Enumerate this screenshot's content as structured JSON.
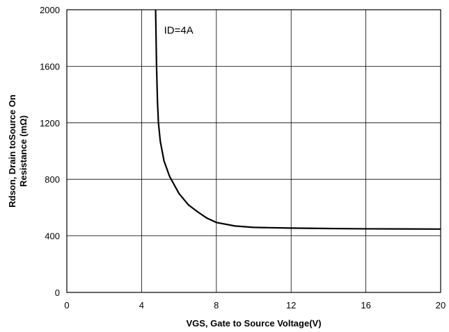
{
  "chart_data": {
    "type": "line",
    "title": "",
    "xlabel": "VGS, Gate to Source Voltage(V)",
    "ylabel_lines": [
      "Rdson, Drain toSource On",
      "Resistance (mΩ)"
    ],
    "xlim": [
      0,
      20
    ],
    "ylim": [
      0,
      2000
    ],
    "xticks": [
      0,
      4,
      8,
      12,
      16,
      20
    ],
    "yticks": [
      0,
      400,
      800,
      1200,
      1600,
      2000
    ],
    "grid": true,
    "annotations": [
      {
        "text": "ID=4A",
        "x": 5.2,
        "y": 1830
      }
    ],
    "series": [
      {
        "x": [
          4.75,
          4.8,
          4.85,
          4.9,
          5.0,
          5.2,
          5.5,
          6.0,
          6.5,
          7.0,
          7.5,
          8.0,
          9.0,
          10.0,
          12.0,
          14.0,
          16.0,
          18.0,
          20.0
        ],
        "y": [
          2000,
          1600,
          1350,
          1200,
          1070,
          930,
          820,
          700,
          620,
          570,
          525,
          495,
          470,
          460,
          455,
          452,
          450,
          449,
          448
        ]
      }
    ],
    "line_color": "#000000"
  }
}
